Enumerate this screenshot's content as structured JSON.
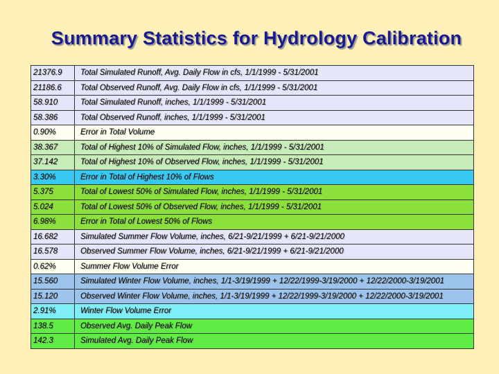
{
  "title": "Summary Statistics for Hydrology Calibration",
  "rows": [
    {
      "value": "21376.9",
      "label": "Total Simulated Runoff, Avg. Daily Flow in cfs, 1/1/1999 - 5/31/2001",
      "color": "#e6e6fa"
    },
    {
      "value": "21186.6",
      "label": "Total Observed Runoff, Avg. Daily Flow in cfs, 1/1/1999 - 5/31/2001",
      "color": "#e6e6fa"
    },
    {
      "value": "58.910",
      "label": "Total Simulated Runoff, inches, 1/1/1999 - 5/31/2001",
      "color": "#e6e6fa"
    },
    {
      "value": "58.386",
      "label": "Total Observed Runoff, inches, 1/1/1999 - 5/31/2001",
      "color": "#e6e6fa"
    },
    {
      "value": "0.90%",
      "label": "Error in Total Volume",
      "color": "#fffff0"
    },
    {
      "value": "38.367",
      "label": "Total of Highest 10% of Simulated Flow, inches, 1/1/1999 - 5/31/2001",
      "color": "#c8ecb8"
    },
    {
      "value": "37.142",
      "label": "Total of Highest 10% of Observed Flow, inches, 1/1/1999 - 5/31/2001",
      "color": "#c8ecb8"
    },
    {
      "value": "3.30%",
      "label": "Error in Total of Highest 10% of Flows",
      "color": "#38c8f4"
    },
    {
      "value": "5.375",
      "label": "Total of Lowest 50% of Simulated Flow, inches, 1/1/1999 - 5/31/2001",
      "color": "#8ce03c"
    },
    {
      "value": "5.024",
      "label": "Total of Lowest 50% of Observed Flow, inches, 1/1/1999 - 5/31/2001",
      "color": "#8ce03c"
    },
    {
      "value": "6.98%",
      "label": "Error in Total of Lowest 50% of Flows",
      "color": "#8ce03c"
    },
    {
      "value": "16.682",
      "label": "Simulated Summer Flow Volume, inches, 6/21-9/21/1999 + 6/21-9/21/2000",
      "color": "#e6e6fa"
    },
    {
      "value": "16.578",
      "label": "Observed Summer Flow Volume, inches, 6/21-9/21/1999 + 6/21-9/21/2000",
      "color": "#e6e6fa"
    },
    {
      "value": "0.62%",
      "label": "Summer Flow Volume Error",
      "color": "#fffff0"
    },
    {
      "value": "15.560",
      "label": "Simulated Winter Flow Volume, inches, 1/1-3/19/1999 + 12/22/1999-3/19/2000 + 12/22/2000-3/19/2001",
      "color": "#9cc4ec"
    },
    {
      "value": "15.120",
      "label": "Observed Winter Flow Volume, inches, 1/1-3/19/1999 + 12/22/1999-3/19/2000 + 12/22/2000-3/19/2001",
      "color": "#9cc4ec"
    },
    {
      "value": "2.91%",
      "label": "Winter Flow Volume Error",
      "color": "#80eef8"
    },
    {
      "value": "138.5",
      "label": "Observed Avg. Daily Peak Flow",
      "color": "#60ec44"
    },
    {
      "value": "142.3",
      "label": "Simulated Avg. Daily Peak Flow",
      "color": "#60ec44"
    }
  ]
}
